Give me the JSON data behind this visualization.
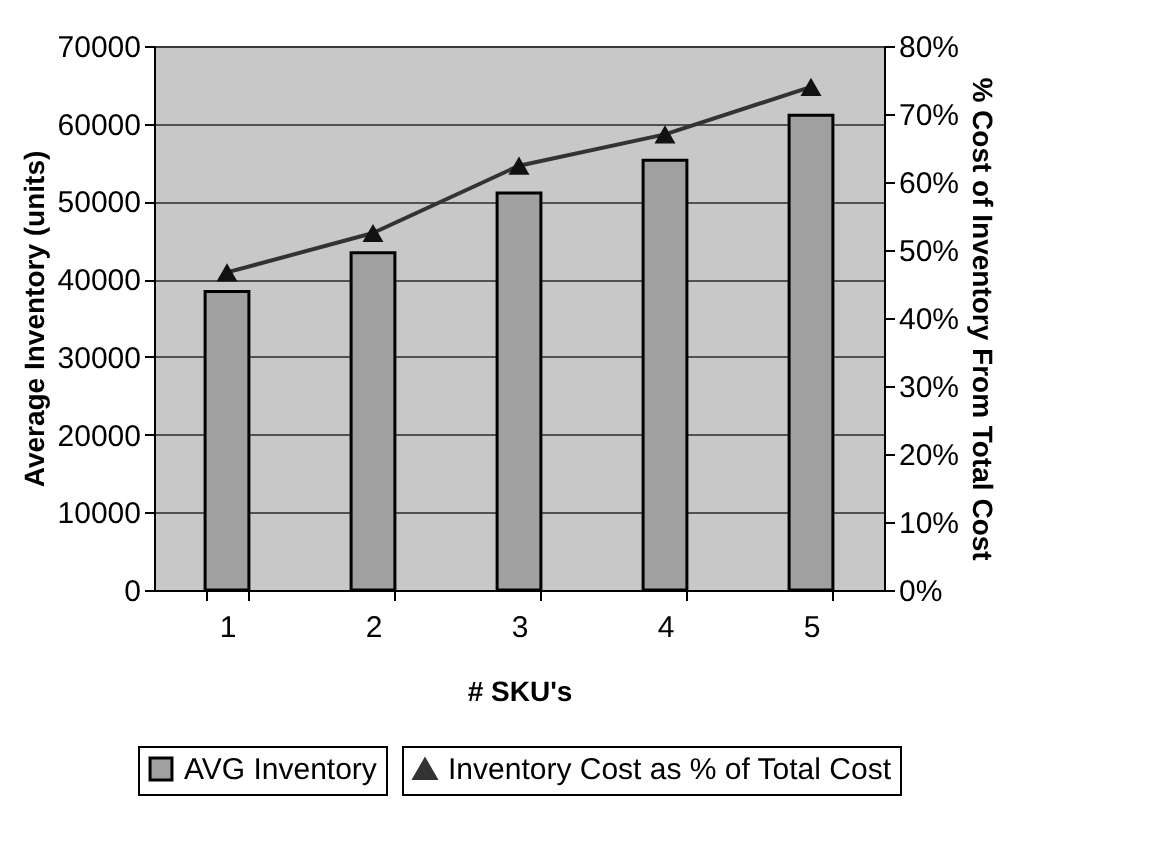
{
  "chart_data": {
    "type": "bar",
    "xlabel": "# SKU's",
    "ylabel": "Average Inventory (units)",
    "y2label": "% Cost of Inventory From Total Cost",
    "categories": [
      "1",
      "2",
      "3",
      "4",
      "5"
    ],
    "series": [
      {
        "name": "AVG Inventory",
        "color": "#a0a0a0",
        "values": [
          38400,
          43400,
          51100,
          55300,
          61100
        ]
      },
      {
        "name": "Inventory Cost as % of Total Cost",
        "type": "line",
        "axis": "y2",
        "color": "#333333",
        "marker": "triangle",
        "values": [
          46.7,
          52.5,
          62.4,
          67,
          74
        ]
      }
    ],
    "ylim": [
      0,
      70000
    ],
    "yticks": [
      0,
      10000,
      20000,
      30000,
      40000,
      50000,
      60000,
      70000
    ],
    "y2lim": [
      0,
      80
    ],
    "y2ticks": [
      {
        "value": 0,
        "label": "0%"
      },
      {
        "value": 10,
        "label": "10%"
      },
      {
        "value": 20,
        "label": "20%"
      },
      {
        "value": 30,
        "label": "30%"
      },
      {
        "value": 40,
        "label": "40%"
      },
      {
        "value": 50,
        "label": "50%"
      },
      {
        "value": 60,
        "label": "60%"
      },
      {
        "value": 70,
        "label": "70%"
      },
      {
        "value": 80,
        "label": "80%"
      }
    ],
    "grid": "y",
    "legend": "bottom"
  }
}
